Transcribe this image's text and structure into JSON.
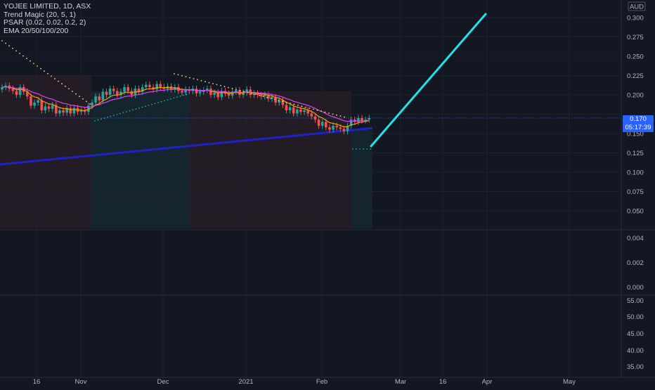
{
  "legend": {
    "symbol": "YOJEE LIMITED, 1D, ASX",
    "indicator1": "Trend Magic (20, 5, 1)",
    "indicator2": "PSAR (0.02, 0.02, 0.2, 2)",
    "indicator3": "EMA 20/50/100/200"
  },
  "currency": "AUD",
  "last_price_label": "0.170",
  "countdown_label": "05:17:39",
  "colors": {
    "background": "#131722",
    "up": "#26a69a",
    "down": "#ef5350",
    "ema_slow": "#1e22c8",
    "projection": "#26e0e8",
    "accent": "#2962ff",
    "grid": "#1e222d"
  },
  "price_axis": {
    "ticks": [
      "0.300",
      "0.275",
      "0.250",
      "0.225",
      "0.200",
      "0.175",
      "0.150",
      "0.125",
      "0.100",
      "0.075",
      "0.050"
    ]
  },
  "sub1_axis": {
    "ticks": [
      "0.004",
      "0.002",
      "0.000"
    ]
  },
  "sub2_axis": {
    "ticks": [
      "55.00",
      "50.00",
      "45.00",
      "40.00",
      "35.00"
    ]
  },
  "time_axis": {
    "labels": [
      "16",
      "Nov",
      "Dec",
      "2021",
      "Feb",
      "Mar",
      "16",
      "Apr",
      "May"
    ]
  },
  "chart_data": {
    "type": "candlestick",
    "title": "YOJEE LIMITED, 1D, ASX",
    "ylim": [
      0.0375,
      0.3125
    ],
    "last_price": 0.17,
    "closes": [
      0.21,
      0.212,
      0.208,
      0.205,
      0.2,
      0.21,
      0.204,
      0.198,
      0.186,
      0.19,
      0.193,
      0.18,
      0.185,
      0.182,
      0.187,
      0.176,
      0.18,
      0.177,
      0.183,
      0.176,
      0.183,
      0.178,
      0.18,
      0.178,
      0.186,
      0.19,
      0.198,
      0.193,
      0.204,
      0.2,
      0.208,
      0.205,
      0.2,
      0.204,
      0.21,
      0.205,
      0.2,
      0.208,
      0.204,
      0.21,
      0.213,
      0.21,
      0.207,
      0.214,
      0.21,
      0.208,
      0.211,
      0.207,
      0.21,
      0.205,
      0.203,
      0.207,
      0.205,
      0.208,
      0.202,
      0.204,
      0.206,
      0.208,
      0.2,
      0.203,
      0.197,
      0.205,
      0.202,
      0.199,
      0.204,
      0.206,
      0.2,
      0.203,
      0.207,
      0.2,
      0.202,
      0.2,
      0.198,
      0.2,
      0.195,
      0.197,
      0.19,
      0.193,
      0.187,
      0.18,
      0.184,
      0.176,
      0.181,
      0.178,
      0.18,
      0.176,
      0.172,
      0.168,
      0.16,
      0.165,
      0.158,
      0.155,
      0.16,
      0.158,
      0.156,
      0.153,
      0.16,
      0.168,
      0.165,
      0.17,
      0.167,
      0.168,
      0.17
    ],
    "psar_start": 0.29,
    "ema200_start": 0.11,
    "ema200_end": 0.157,
    "projection_end": 0.304
  }
}
